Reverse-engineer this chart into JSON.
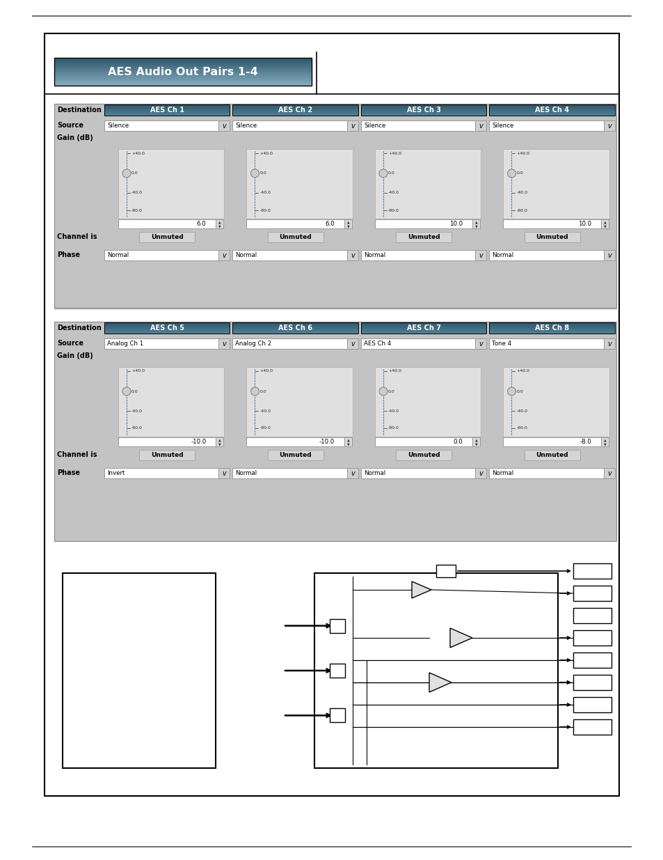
{
  "bg_color": "#ffffff",
  "panel_bg": "#c3c3c3",
  "header_color": "#3d6070",
  "title_text": "AES Audio Out Pairs 1-4",
  "ch_headers_row1": [
    "AES Ch 1",
    "AES Ch 2",
    "AES Ch 3",
    "AES Ch 4"
  ],
  "ch_headers_row2": [
    "AES Ch 5",
    "AES Ch 6",
    "AES Ch 7",
    "AES Ch 8"
  ],
  "sources_row1": [
    "Silence",
    "Silence",
    "Silence",
    "Silence"
  ],
  "sources_row2": [
    "Analog Ch 1",
    "Analog Ch 2",
    "AES Ch 4",
    "Tone 4"
  ],
  "gain_values_row1": [
    "6.0",
    "6.0",
    "10.0",
    "10.0"
  ],
  "gain_values_row2": [
    "-10.0",
    "-10.0",
    "0.0",
    "-8.0"
  ],
  "phase_row1": [
    "Normal",
    "Normal",
    "Normal",
    "Normal"
  ],
  "phase_row2": [
    "Invert",
    "Normal",
    "Normal",
    "Normal"
  ],
  "tick_labels": [
    "-40.0",
    "0.0",
    "-40.0",
    "-80.0"
  ]
}
